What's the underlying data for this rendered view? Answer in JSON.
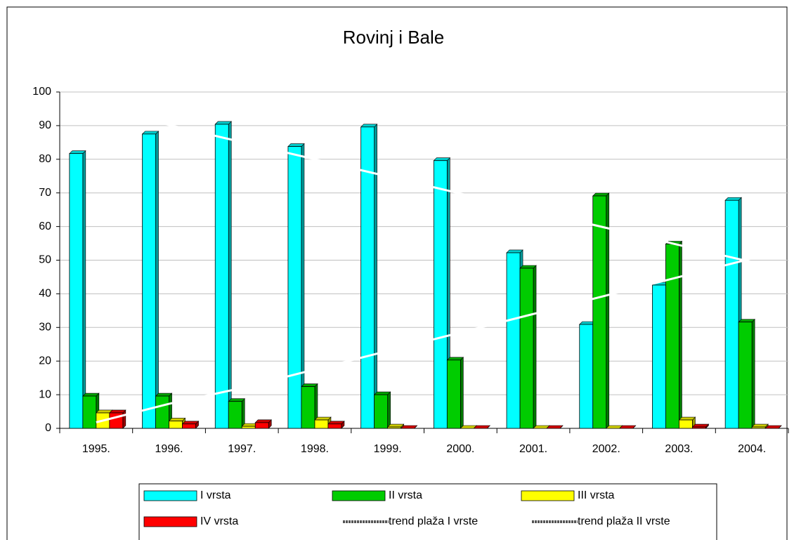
{
  "chart_data": {
    "type": "bar",
    "title": "Rovinj i Bale",
    "categories": [
      "1995.",
      "1996.",
      "1997.",
      "1998.",
      "1999.",
      "2000.",
      "2001.",
      "2002.",
      "2003.",
      "2004."
    ],
    "series": [
      {
        "name": "I vrsta",
        "color": "#00ffff",
        "values": [
          81.7,
          87.5,
          90.4,
          83.8,
          89.6,
          79.6,
          52.2,
          30.9,
          42.6,
          67.8
        ]
      },
      {
        "name": "II vrsta",
        "color": "#00cc00",
        "values": [
          9.6,
          9.6,
          8.0,
          12.4,
          10.0,
          20.3,
          47.6,
          69.1,
          54.8,
          31.6
        ]
      },
      {
        "name": "III vrsta",
        "color": "#ffff00",
        "values": [
          4.6,
          2.2,
          0.6,
          2.5,
          0.4,
          0,
          0,
          0,
          2.5,
          0.4
        ]
      },
      {
        "name": "IV vrsta",
        "color": "#ff0000",
        "values": [
          4.6,
          1.3,
          1.7,
          1.3,
          0,
          0,
          0,
          0,
          0.4,
          0
        ]
      },
      {
        "name": "trend plaža I vrste",
        "type": "line",
        "color": "#ffffff",
        "values": [
          95.3,
          90.2,
          85.1,
          80.0,
          74.9,
          69.8,
          64.7,
          59.6,
          54.5,
          49.4
        ]
      },
      {
        "name": "trend plaža II vrste",
        "type": "line",
        "color": "#ffffff",
        "values": [
          1.8,
          7.3,
          12.0,
          17.5,
          23.0,
          28.5,
          34.0,
          39.5,
          45.0,
          50.5
        ]
      }
    ],
    "ylim": [
      0,
      100
    ],
    "yticks": [
      0,
      10,
      20,
      30,
      40,
      50,
      60,
      70,
      80,
      90,
      100
    ],
    "grid": true,
    "legend": "bottom"
  }
}
